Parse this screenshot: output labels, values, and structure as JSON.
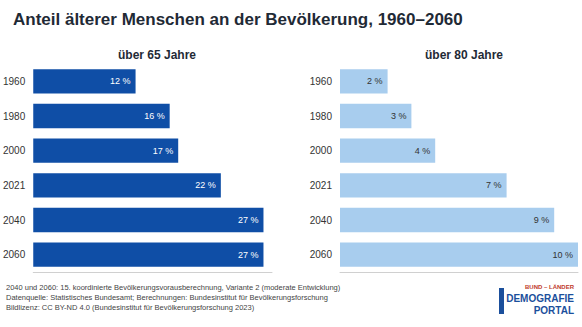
{
  "title": "Anteil älterer Menschen an der Bevölkerung, 1960–2060",
  "notes": [
    "2040 und 2060: 15. koordinierte Bevölkerungsvorausberechnung, Variante 2 (moderate Entwicklung)",
    "Datenquelle: Statistisches Bundesamt; Berechnungen: Bundesinstitut für Bevölkerungsforschung",
    "Bildlizenz: CC BY-ND 4.0 (Bundesinstitut für Bevölkerungsforschung 2023)"
  ],
  "logo": [
    "BUND – LÄNDER",
    "DEMOGRAFIE",
    "PORTAL"
  ],
  "chart_data": [
    {
      "type": "bar",
      "title": "über 65 Jahre",
      "orientation": "horizontal",
      "categories": [
        "1960",
        "1980",
        "2000",
        "2021",
        "2040",
        "2060"
      ],
      "values": [
        12,
        16,
        17,
        22,
        27,
        27
      ],
      "value_labels": [
        "12 %",
        "16 %",
        "17 %",
        "22 %",
        "27 %",
        "27 %"
      ],
      "data_labels": true,
      "tick_labels": "y",
      "color": "#0f4ea6",
      "xlim": [
        0,
        28
      ],
      "grid": false
    },
    {
      "type": "bar",
      "title": "über 80 Jahre",
      "orientation": "horizontal",
      "categories": [
        "1960",
        "1980",
        "2000",
        "2021",
        "2040",
        "2060"
      ],
      "values": [
        2,
        3,
        4,
        7,
        9,
        10
      ],
      "value_labels": [
        "2 %",
        "3 %",
        "4 %",
        "7 %",
        "9 %",
        "10 %"
      ],
      "data_labels": true,
      "tick_labels": "y",
      "color": "#a8cdee",
      "xlim": [
        0,
        10
      ],
      "grid": false
    }
  ]
}
